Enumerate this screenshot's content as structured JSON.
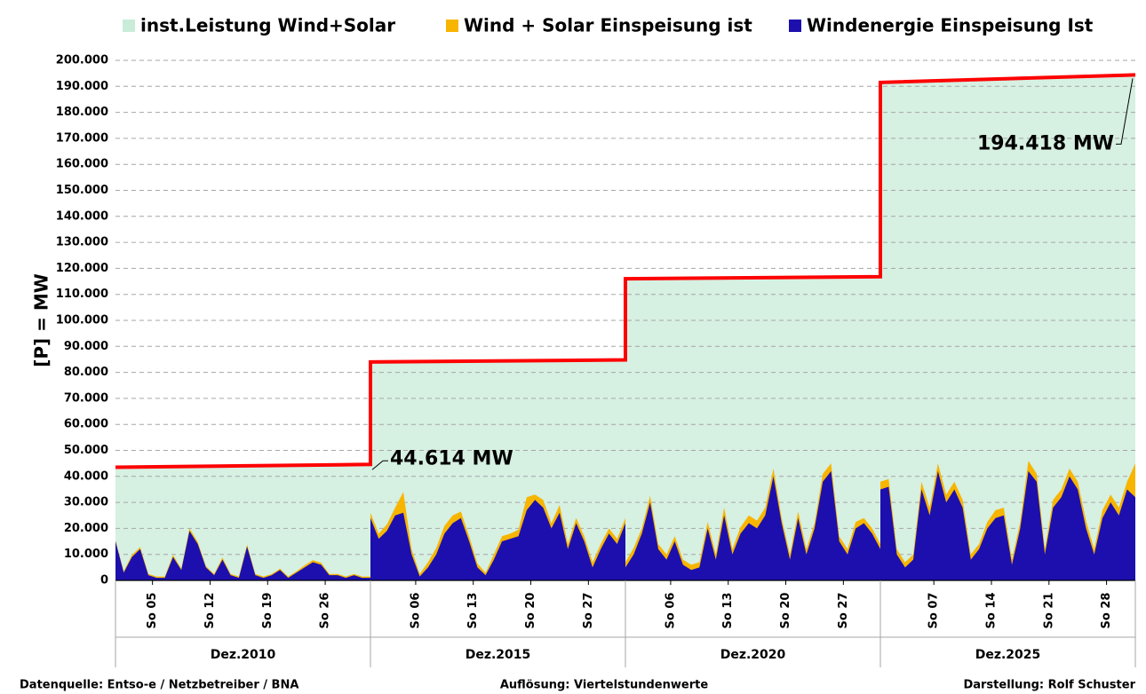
{
  "chart_data": {
    "type": "area",
    "ylabel": "[P] =  MW",
    "ylim": [
      0,
      200000
    ],
    "yticks": [
      {
        "value": 0,
        "label": "0"
      },
      {
        "value": 10000,
        "label": "10.000"
      },
      {
        "value": 20000,
        "label": "20.000"
      },
      {
        "value": 30000,
        "label": "30.000"
      },
      {
        "value": 40000,
        "label": "40.000"
      },
      {
        "value": 50000,
        "label": "50.000"
      },
      {
        "value": 60000,
        "label": "60.000"
      },
      {
        "value": 70000,
        "label": "70.000"
      },
      {
        "value": 80000,
        "label": "80.000"
      },
      {
        "value": 90000,
        "label": "90.000"
      },
      {
        "value": 100000,
        "label": "100.000"
      },
      {
        "value": 110000,
        "label": "110.000"
      },
      {
        "value": 120000,
        "label": "120.000"
      },
      {
        "value": 130000,
        "label": "130.000"
      },
      {
        "value": 140000,
        "label": "140.000"
      },
      {
        "value": 150000,
        "label": "150.000"
      },
      {
        "value": 160000,
        "label": "160.000"
      },
      {
        "value": 170000,
        "label": "170.000"
      },
      {
        "value": 180000,
        "label": "180.000"
      },
      {
        "value": 190000,
        "label": "190.000"
      },
      {
        "value": 200000,
        "label": "200.000"
      }
    ],
    "grid": true,
    "xlim": [
      1,
      32
    ],
    "x": [
      1,
      2,
      3,
      4,
      5,
      6,
      7,
      8,
      9,
      10,
      11,
      12,
      13,
      14,
      15,
      16,
      17,
      18,
      19,
      20,
      21,
      22,
      23,
      24,
      25,
      26,
      27,
      28,
      29,
      30,
      31,
      32
    ],
    "groups": [
      {
        "label": "Dez.2010",
        "ticks": [
          {
            "value": 5.5,
            "label": "So 05"
          },
          {
            "value": 12.5,
            "label": "So 12"
          },
          {
            "value": 19.5,
            "label": "So 19"
          },
          {
            "value": 26.5,
            "label": "So 26"
          }
        ]
      },
      {
        "label": "Dez.2015",
        "ticks": [
          {
            "value": 6.5,
            "label": "So 06"
          },
          {
            "value": 13.5,
            "label": "So 13"
          },
          {
            "value": 20.5,
            "label": "So 20"
          },
          {
            "value": 27.5,
            "label": "So 27"
          }
        ]
      },
      {
        "label": "Dez.2020",
        "ticks": [
          {
            "value": 6.5,
            "label": "So 06"
          },
          {
            "value": 13.5,
            "label": "So 13"
          },
          {
            "value": 20.5,
            "label": "So 20"
          },
          {
            "value": 27.5,
            "label": "So 27"
          }
        ]
      },
      {
        "label": "Dez.2025",
        "ticks": [
          {
            "value": 7.5,
            "label": "So 07"
          },
          {
            "value": 14.5,
            "label": "So 14"
          },
          {
            "value": 21.5,
            "label": "So 21"
          },
          {
            "value": 28.5,
            "label": "So 28"
          }
        ]
      }
    ],
    "series": [
      {
        "name": "inst.Leistung Wind+Solar",
        "color": "#d6f0e2",
        "line_color": "#ff0000",
        "x": [
          1,
          32
        ],
        "values": [
          [
            43500,
            44614
          ],
          [
            84000,
            84800
          ],
          [
            116000,
            116800
          ],
          [
            191500,
            194418
          ]
        ],
        "value_labels": [
          [
            null,
            "44.614 MW"
          ],
          [
            null,
            null
          ],
          [
            null,
            null
          ],
          [
            null,
            "194.418 MW"
          ]
        ]
      },
      {
        "name": "Wind + Solar Einspeisung ist",
        "color": "#f7b500",
        "values": [
          [
            15500,
            3500,
            9800,
            12800,
            2500,
            1500,
            1500,
            9800,
            4500,
            20000,
            14800,
            5500,
            2500,
            8800,
            2500,
            1500,
            13800,
            2500,
            1500,
            2500,
            4500,
            1500,
            3500,
            5800,
            7800,
            6800,
            2500,
            2500,
            1500,
            2500,
            1500,
            1500
          ],
          [
            26000,
            18000,
            21500,
            28000,
            34000,
            12000,
            2500,
            7000,
            12500,
            21000,
            25000,
            26500,
            17000,
            6500,
            3000,
            10000,
            17000,
            18000,
            19500,
            32000,
            33000,
            31000,
            22000,
            29000,
            14000,
            24000,
            17000,
            7000,
            14000,
            20000,
            16000,
            24000
          ],
          [
            7000,
            12500,
            20000,
            32500,
            14000,
            10000,
            17000,
            8000,
            6000,
            7000,
            22500,
            10000,
            28000,
            12000,
            20500,
            25000,
            23000,
            28000,
            43000,
            24000,
            10000,
            26500,
            12000,
            22000,
            41000,
            45000,
            17000,
            12000,
            22500,
            24000,
            20000,
            14000
          ],
          [
            38000,
            39000,
            12000,
            7000,
            10000,
            38000,
            28000,
            45000,
            33000,
            38000,
            31000,
            10000,
            14000,
            22500,
            27000,
            28000,
            8000,
            22500,
            46000,
            41000,
            12000,
            31000,
            35000,
            43000,
            38000,
            23000,
            12000,
            27000,
            33000,
            28000,
            38000,
            45000
          ]
        ]
      },
      {
        "name": "Windenergie Einspeisung Ist",
        "color": "#1d0fae",
        "values": [
          [
            15000,
            3000,
            9000,
            12000,
            2000,
            1000,
            1000,
            9000,
            4000,
            19000,
            14000,
            5000,
            2000,
            8000,
            2000,
            1000,
            13000,
            2000,
            1000,
            2000,
            4000,
            1000,
            3000,
            5000,
            7000,
            6000,
            2000,
            2000,
            1000,
            2000,
            1000,
            1000
          ],
          [
            24000,
            16000,
            19000,
            25000,
            26000,
            10000,
            1500,
            5000,
            10000,
            18000,
            22000,
            24000,
            15000,
            5000,
            2000,
            8000,
            15000,
            16000,
            17000,
            27000,
            31000,
            28000,
            20000,
            26000,
            12000,
            22000,
            15000,
            5000,
            12000,
            18000,
            14000,
            22000
          ],
          [
            5000,
            10000,
            18000,
            30000,
            12000,
            8000,
            15000,
            6000,
            4000,
            5000,
            20000,
            8000,
            25000,
            10000,
            18000,
            22000,
            20000,
            25000,
            40000,
            22000,
            8000,
            24000,
            10000,
            20000,
            38000,
            42000,
            15000,
            10000,
            20000,
            22000,
            18000,
            12000
          ],
          [
            35000,
            36000,
            10000,
            5000,
            8000,
            35000,
            25000,
            42000,
            30000,
            35000,
            28000,
            8000,
            12000,
            20000,
            24000,
            25000,
            6000,
            20000,
            42000,
            38000,
            10000,
            28000,
            32000,
            40000,
            35000,
            20000,
            10000,
            24000,
            30000,
            25000,
            35000,
            32000
          ]
        ]
      }
    ],
    "footer": {
      "source": "Datenquelle:  Entso-e  / Netzbetreiber / BNA",
      "resolution": "Auflösung: Viertelstundenwerte",
      "author": "Darstellung:  Rolf Schuster"
    }
  }
}
